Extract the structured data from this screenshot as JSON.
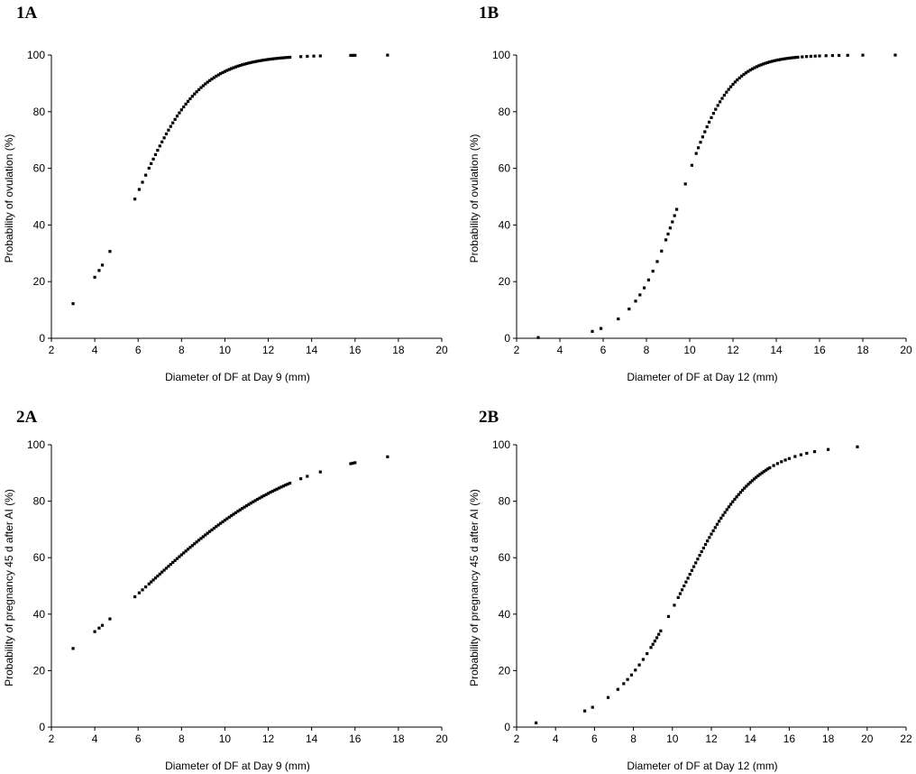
{
  "chart_data": [
    {
      "type": "scatter",
      "panel_label": "1A",
      "xlabel": "Diameter of DF at Day 9 (mm)",
      "ylabel": "Probability of ovulation (%)",
      "xlim": [
        2,
        20
      ],
      "ylim": [
        0,
        100
      ],
      "xticks": [
        "2",
        "4",
        "6",
        "8",
        "10",
        "12",
        "14",
        "16",
        "18",
        "20"
      ],
      "yticks": [
        "0",
        "20",
        "40",
        "60",
        "80",
        "100"
      ],
      "grid": false,
      "logistic": {
        "x0": 5.9,
        "k": 0.68
      },
      "x": [
        3.0,
        4.0,
        4.2,
        4.35,
        4.7,
        5.85,
        6.05,
        6.2,
        6.35,
        6.5,
        6.6,
        6.7,
        6.8,
        6.9,
        7.0,
        7.1,
        7.2,
        7.3,
        7.4,
        7.5,
        7.6,
        7.7,
        7.8,
        7.9,
        8.0,
        8.1,
        8.2,
        8.3,
        8.4,
        8.5,
        8.6,
        8.7,
        8.8,
        8.9,
        9.0,
        9.1,
        9.2,
        9.3,
        9.4,
        9.5,
        9.6,
        9.7,
        9.8,
        9.9,
        10.0,
        10.1,
        10.2,
        10.3,
        10.4,
        10.5,
        10.6,
        10.7,
        10.8,
        10.9,
        11.0,
        11.1,
        11.2,
        11.3,
        11.4,
        11.5,
        11.6,
        11.7,
        11.8,
        11.9,
        12.0,
        12.1,
        12.2,
        12.3,
        12.4,
        12.5,
        12.6,
        12.7,
        12.8,
        12.9,
        13.0,
        13.5,
        13.8,
        14.1,
        14.4,
        15.8,
        15.9,
        16.0,
        17.5
      ]
    },
    {
      "type": "scatter",
      "panel_label": "1B",
      "xlabel": "Diameter of DF at Day 12 (mm)",
      "ylabel": "Probability of ovulation (%)",
      "xlim": [
        2,
        20
      ],
      "ylim": [
        0,
        100
      ],
      "xticks": [
        "2",
        "4",
        "6",
        "8",
        "10",
        "12",
        "14",
        "16",
        "18",
        "20"
      ],
      "yticks": [
        "0",
        "20",
        "40",
        "60",
        "80",
        "100"
      ],
      "grid": false,
      "logistic": {
        "x0": 9.6,
        "k": 0.9
      },
      "x": [
        3.0,
        5.5,
        5.9,
        6.7,
        7.2,
        7.5,
        7.7,
        7.9,
        8.1,
        8.3,
        8.5,
        8.7,
        8.9,
        9.0,
        9.1,
        9.2,
        9.3,
        9.4,
        9.8,
        10.1,
        10.3,
        10.4,
        10.5,
        10.6,
        10.7,
        10.8,
        10.9,
        11.0,
        11.1,
        11.2,
        11.3,
        11.4,
        11.5,
        11.6,
        11.7,
        11.8,
        11.9,
        12.0,
        12.1,
        12.2,
        12.3,
        12.4,
        12.5,
        12.6,
        12.7,
        12.8,
        12.9,
        13.0,
        13.1,
        13.2,
        13.3,
        13.4,
        13.5,
        13.6,
        13.7,
        13.8,
        13.9,
        14.0,
        14.1,
        14.2,
        14.3,
        14.4,
        14.5,
        14.6,
        14.7,
        14.8,
        14.9,
        15.0,
        15.2,
        15.4,
        15.6,
        15.8,
        16.0,
        16.3,
        16.6,
        16.9,
        17.3,
        18.0,
        19.5
      ]
    },
    {
      "type": "scatter",
      "panel_label": "2A",
      "xlabel": "Diameter of DF at Day 9 (mm)",
      "ylabel": "Probability of pregnancy 45 d after AI (%)",
      "xlim": [
        2,
        20
      ],
      "ylim": [
        0,
        100
      ],
      "xticks": [
        "2",
        "4",
        "6",
        "8",
        "10",
        "12",
        "14",
        "16",
        "18",
        "20"
      ],
      "yticks": [
        "0",
        "20",
        "40",
        "60",
        "80",
        "100"
      ],
      "grid": false,
      "logistic": {
        "x0": 6.4,
        "k": 0.28
      },
      "x": [
        3.0,
        4.0,
        4.2,
        4.35,
        4.7,
        5.85,
        6.05,
        6.2,
        6.35,
        6.5,
        6.6,
        6.7,
        6.8,
        6.9,
        7.0,
        7.1,
        7.2,
        7.3,
        7.4,
        7.5,
        7.6,
        7.7,
        7.8,
        7.9,
        8.0,
        8.1,
        8.2,
        8.3,
        8.4,
        8.5,
        8.6,
        8.7,
        8.8,
        8.9,
        9.0,
        9.1,
        9.2,
        9.3,
        9.4,
        9.5,
        9.6,
        9.7,
        9.8,
        9.9,
        10.0,
        10.1,
        10.2,
        10.3,
        10.4,
        10.5,
        10.6,
        10.7,
        10.8,
        10.9,
        11.0,
        11.1,
        11.2,
        11.3,
        11.4,
        11.5,
        11.6,
        11.7,
        11.8,
        11.9,
        12.0,
        12.1,
        12.2,
        12.3,
        12.4,
        12.5,
        12.6,
        12.7,
        12.8,
        12.9,
        13.0,
        13.5,
        13.8,
        14.4,
        15.8,
        15.9,
        16.0,
        17.5
      ]
    },
    {
      "type": "scatter",
      "panel_label": "2B",
      "xlabel": "Diameter of DF at Day 12 (mm)",
      "ylabel": "Probability of pregnancy 45 d after AI (%)",
      "xlim": [
        2,
        22
      ],
      "ylim": [
        0,
        100
      ],
      "xticks": [
        "2",
        "4",
        "6",
        "8",
        "10",
        "12",
        "14",
        "16",
        "18",
        "20",
        "22"
      ],
      "yticks": [
        "0",
        "20",
        "40",
        "60",
        "80",
        "100"
      ],
      "grid": false,
      "logistic": {
        "x0": 10.6,
        "k": 0.55
      },
      "x": [
        3.0,
        5.5,
        5.9,
        6.7,
        7.2,
        7.5,
        7.7,
        7.9,
        8.1,
        8.3,
        8.5,
        8.7,
        8.9,
        9.0,
        9.1,
        9.2,
        9.3,
        9.4,
        9.8,
        10.1,
        10.3,
        10.4,
        10.5,
        10.6,
        10.7,
        10.8,
        10.9,
        11.0,
        11.1,
        11.2,
        11.3,
        11.4,
        11.5,
        11.6,
        11.7,
        11.8,
        11.9,
        12.0,
        12.1,
        12.2,
        12.3,
        12.4,
        12.5,
        12.6,
        12.7,
        12.8,
        12.9,
        13.0,
        13.1,
        13.2,
        13.3,
        13.4,
        13.5,
        13.6,
        13.7,
        13.8,
        13.9,
        14.0,
        14.1,
        14.2,
        14.3,
        14.4,
        14.5,
        14.6,
        14.7,
        14.8,
        14.9,
        15.0,
        15.2,
        15.4,
        15.6,
        15.8,
        16.0,
        16.3,
        16.6,
        16.9,
        17.3,
        18.0,
        19.5
      ]
    }
  ]
}
